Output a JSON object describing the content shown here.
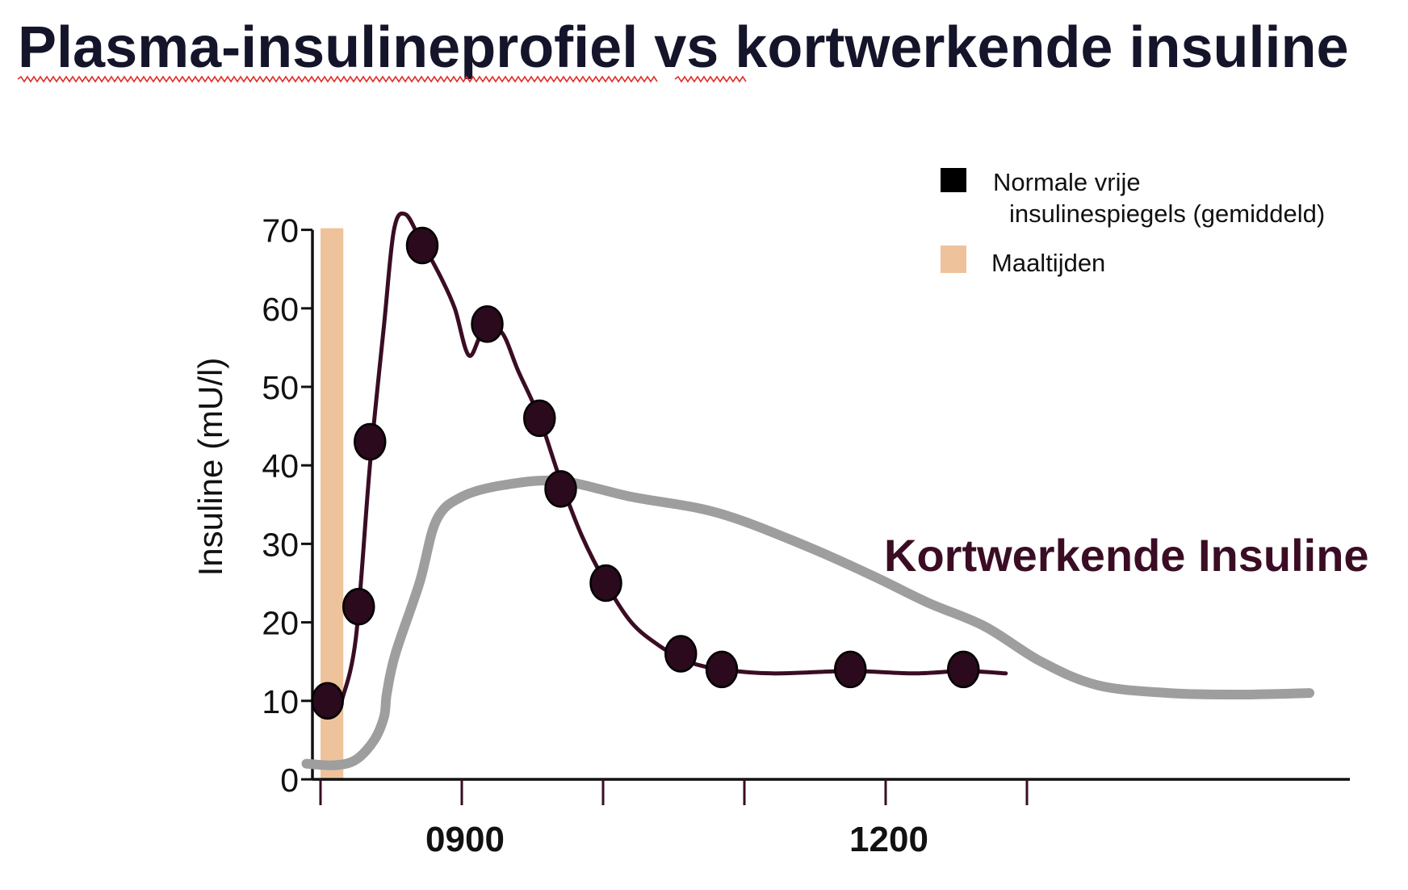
{
  "chart_data": {
    "type": "line",
    "title": "Plasma-insulineprofiel vs kortwerkende insuline",
    "ylabel": "Insuline (mU/l)",
    "xlabel": "",
    "ylim": [
      0,
      70
    ],
    "xlim": [
      7.0,
      14.3
    ],
    "y_ticks": [
      "0",
      "10",
      "20",
      "30",
      "40",
      "50",
      "60",
      "70"
    ],
    "x_tick_labels": [
      {
        "x": 8.0,
        "label": "0900"
      },
      {
        "x": 11.0,
        "label": "1200"
      }
    ],
    "grid": false,
    "legend_position": "top-right",
    "legend": [
      {
        "label_line1": "Normale vrije",
        "label_line2": "insulinespiegels (gemiddeld)",
        "marker": "square",
        "color": "#000000"
      },
      {
        "label_line1": "Maaltijden",
        "marker": "square",
        "color": "#eec39b"
      }
    ],
    "meal": {
      "x_start": 7.0,
      "x_end": 7.15,
      "color": "#eec39b"
    },
    "series": [
      {
        "name": "Normale vrije insulinespiegels (gemiddeld)",
        "color": "#3a0d24",
        "points": [
          {
            "x": 7.05,
            "y": 10
          },
          {
            "x": 7.27,
            "y": 22
          },
          {
            "x": 7.35,
            "y": 43
          },
          {
            "x": 7.72,
            "y": 68
          },
          {
            "x": 8.18,
            "y": 58
          },
          {
            "x": 8.55,
            "y": 46
          },
          {
            "x": 8.7,
            "y": 37
          },
          {
            "x": 9.02,
            "y": 25
          },
          {
            "x": 9.55,
            "y": 16
          },
          {
            "x": 9.84,
            "y": 14
          },
          {
            "x": 10.75,
            "y": 14
          },
          {
            "x": 11.55,
            "y": 14
          }
        ],
        "curve": [
          [
            7.15,
            10
          ],
          [
            7.25,
            18
          ],
          [
            7.35,
            40
          ],
          [
            7.45,
            58
          ],
          [
            7.52,
            70
          ],
          [
            7.6,
            72
          ],
          [
            7.7,
            69
          ],
          [
            7.85,
            64
          ],
          [
            7.95,
            60
          ],
          [
            8.05,
            54
          ],
          [
            8.15,
            57
          ],
          [
            8.28,
            57
          ],
          [
            8.4,
            52
          ],
          [
            8.55,
            46
          ],
          [
            8.7,
            38
          ],
          [
            8.85,
            31
          ],
          [
            9.02,
            25
          ],
          [
            9.2,
            20
          ],
          [
            9.4,
            17
          ],
          [
            9.6,
            15
          ],
          [
            9.84,
            14
          ],
          [
            10.2,
            13.5
          ],
          [
            10.75,
            13.8
          ],
          [
            11.2,
            13.5
          ],
          [
            11.55,
            13.8
          ],
          [
            11.85,
            13.5
          ]
        ]
      },
      {
        "name": "Kortwerkende Insuline",
        "color": "#9e9e9e",
        "curve": [
          [
            6.9,
            2
          ],
          [
            7.1,
            1.8
          ],
          [
            7.25,
            2.5
          ],
          [
            7.38,
            5
          ],
          [
            7.45,
            8
          ],
          [
            7.47,
            11
          ],
          [
            7.53,
            16
          ],
          [
            7.7,
            25
          ],
          [
            7.82,
            33
          ],
          [
            8.0,
            36
          ],
          [
            8.3,
            37.5
          ],
          [
            8.7,
            38
          ],
          [
            9.2,
            36
          ],
          [
            9.8,
            34
          ],
          [
            10.4,
            30
          ],
          [
            10.9,
            26
          ],
          [
            11.3,
            22.5
          ],
          [
            11.7,
            19.5
          ],
          [
            12.1,
            15
          ],
          [
            12.5,
            12
          ],
          [
            13.0,
            11
          ],
          [
            13.5,
            10.8
          ],
          [
            14.0,
            11
          ]
        ]
      }
    ],
    "annotation": {
      "text": "Kortwerkende Insuline",
      "color": "#3a0d24"
    }
  }
}
